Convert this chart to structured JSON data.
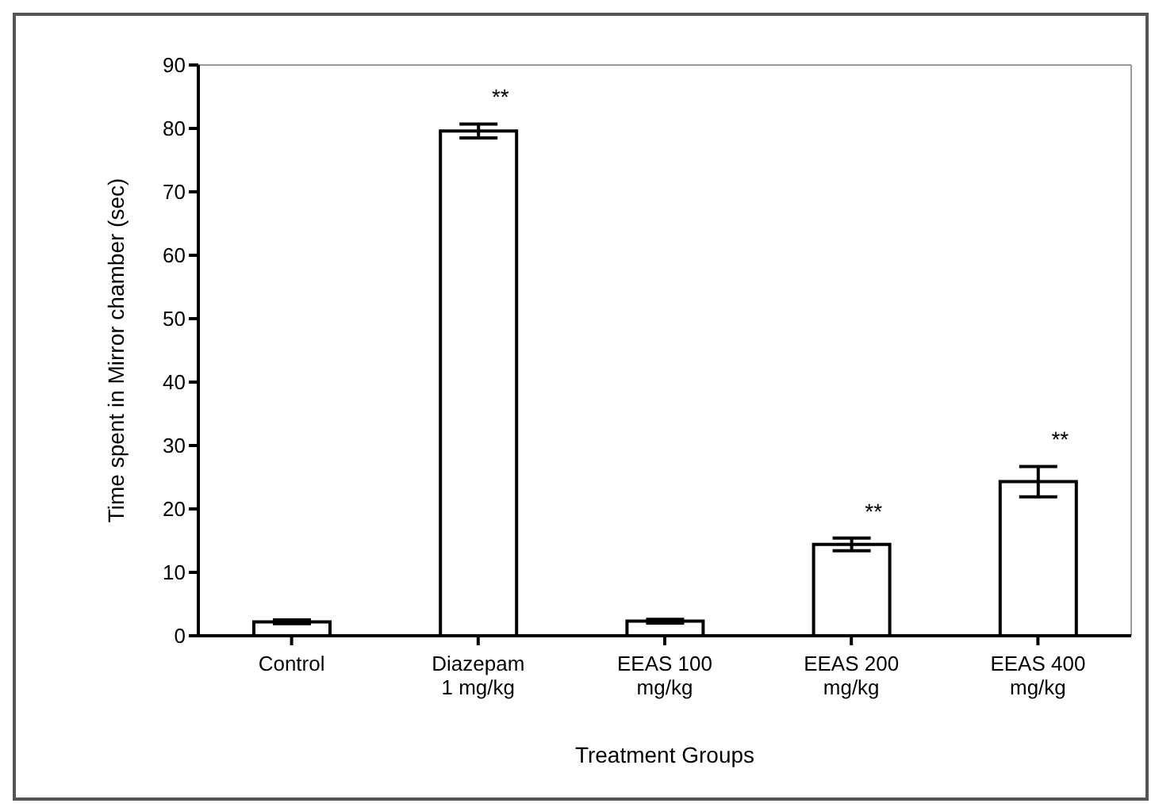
{
  "chart_data": {
    "type": "bar",
    "categories": [
      "Control",
      "Diazepam 1 mg/kg",
      "EEAS 100 mg/kg",
      "EEAS 200 mg/kg",
      "EEAS 400 mg/kg"
    ],
    "values": [
      2.2,
      79.6,
      2.3,
      14.4,
      24.3
    ],
    "errors": [
      0.3,
      1.1,
      0.3,
      1.0,
      2.4
    ],
    "color": "#ffffff",
    "xlabel": "Treatment Groups",
    "ylabel": "Time spent in Mirror chamber (sec)",
    "ylim": [
      0,
      90
    ],
    "yticks": [
      0,
      10,
      20,
      30,
      40,
      50,
      60,
      70,
      80,
      90
    ],
    "grid": false,
    "annotations": [
      {
        "text": "**",
        "x": "Diazepam 1 mg/kg",
        "y": 79.6
      },
      {
        "text": "**",
        "x": "EEAS 200 mg/kg",
        "y": 14.4
      },
      {
        "text": "**",
        "x": "EEAS 400 mg/kg",
        "y": 24.3
      }
    ]
  }
}
